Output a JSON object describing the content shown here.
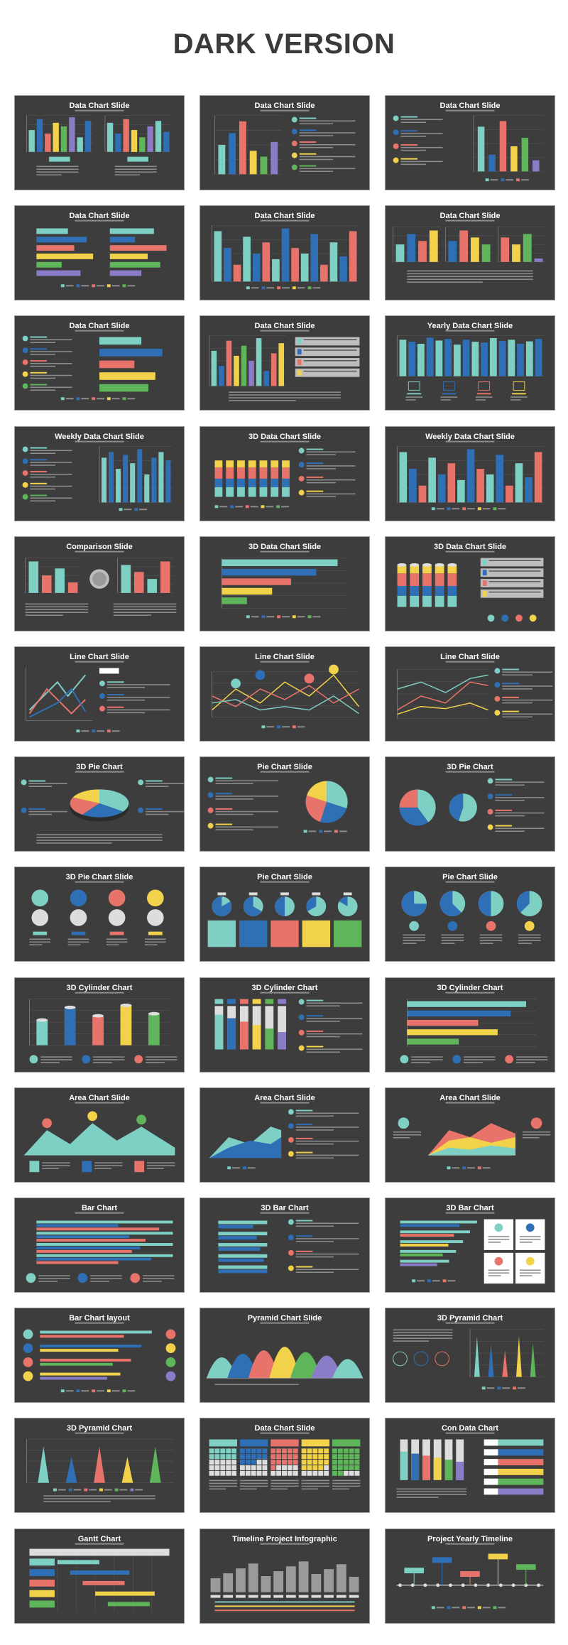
{
  "page": {
    "title": "DARK VERSION"
  },
  "palette": {
    "background": "#3d3d3d",
    "teal": "#7ecfc4",
    "blue": "#2f6fb6",
    "red": "#e8736b",
    "yellow": "#f2d24b",
    "green": "#5fb55a",
    "purple": "#8a7cc6",
    "grid": "#5a5a5a"
  },
  "slides": [
    {
      "title": "Data Chart Slide",
      "art": "bars-split"
    },
    {
      "title": "Data Chart Slide",
      "art": "bars-list"
    },
    {
      "title": "Data Chart Slide",
      "art": "text-bars"
    },
    {
      "title": "Data Chart Slide",
      "art": "hbars-double"
    },
    {
      "title": "Data Chart Slide",
      "art": "bars-grouped"
    },
    {
      "title": "Data Chart Slide",
      "art": "bars-triple"
    },
    {
      "title": "Data Chart Slide",
      "art": "list-hbars"
    },
    {
      "title": "Data Chart Slide",
      "art": "bars-boxes"
    },
    {
      "title": "Yearly Data Chart Slide",
      "art": "bars-icons"
    },
    {
      "title": "Weekly Data Chart Slide",
      "art": "list-bars"
    },
    {
      "title": "3D Data Chart Slide",
      "art": "stacked-3d"
    },
    {
      "title": "Weekly Data Chart Slide",
      "art": "bars-grouped"
    },
    {
      "title": "Comparison Slide",
      "art": "comparison"
    },
    {
      "title": "3D Data Chart Slide",
      "art": "hbars-big"
    },
    {
      "title": "3D Data Chart Slide",
      "art": "cylinders-boxes"
    },
    {
      "title": "Line Chart Slide",
      "art": "line-3d"
    },
    {
      "title": "Line Chart Slide",
      "art": "line-pins"
    },
    {
      "title": "Line Chart Slide",
      "art": "line-simple"
    },
    {
      "title": "3D Pie Chart",
      "art": "pie-3d"
    },
    {
      "title": "Pie Chart Slide",
      "art": "pie-list"
    },
    {
      "title": "3D Pie Chart",
      "art": "pies-two"
    },
    {
      "title": "3D Pie Chart Slide",
      "art": "icons-row"
    },
    {
      "title": "Pie Chart Slide",
      "art": "pies-five"
    },
    {
      "title": "Pie Chart Slide",
      "art": "pies-four"
    },
    {
      "title": "3D Cylinder Chart",
      "art": "cylinder-bars"
    },
    {
      "title": "3D Cylinder Chart",
      "art": "cylinder-tubes"
    },
    {
      "title": "3D Cylinder Chart",
      "art": "hbars-cyl"
    },
    {
      "title": "Area Chart Slide",
      "art": "area-pins"
    },
    {
      "title": "Area Chart Slide",
      "art": "area-text"
    },
    {
      "title": "Area Chart Slide",
      "art": "area-layers"
    },
    {
      "title": "Bar Chart",
      "art": "hbars-stripe"
    },
    {
      "title": "3D Bar Chart",
      "art": "hbars-3d-list"
    },
    {
      "title": "3D Bar Chart",
      "art": "hbars-3d-boxes"
    },
    {
      "title": "Bar Chart layout",
      "art": "hbars-icons"
    },
    {
      "title": "Pyramid Chart Slide",
      "art": "pyramids"
    },
    {
      "title": "3D Pyramid Chart",
      "art": "pyramid-text"
    },
    {
      "title": "3D Pyramid Chart",
      "art": "cones"
    },
    {
      "title": "Data Chart Slide",
      "art": "waffle"
    },
    {
      "title": "Con Data Chart",
      "art": "tubes-pills"
    },
    {
      "title": "Gantt Chart",
      "art": "gantt"
    },
    {
      "title": "Timeline Project Infographic",
      "art": "timeline-bars"
    },
    {
      "title": "Project Yearly Timeline",
      "art": "timeline-line"
    }
  ]
}
